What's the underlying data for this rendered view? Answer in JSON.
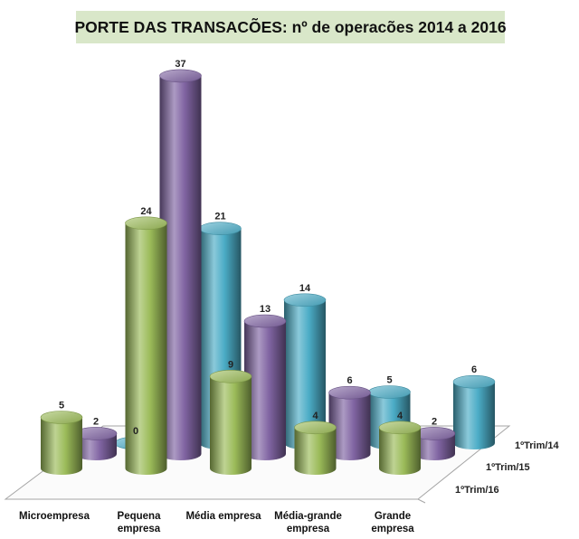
{
  "chart_data": {
    "type": "bar",
    "title": "PORTE DAS TRANSACÕES:  nº de operacões 2014 a 2016",
    "categories": [
      "Microempresa",
      "Pequena empresa",
      "Média empresa",
      "Média-grande empresa",
      "Grande empresa"
    ],
    "series": [
      {
        "name": "1ºTrim/14",
        "values": [
          0,
          21,
          14,
          5,
          6
        ]
      },
      {
        "name": "1ºTrim/15",
        "values": [
          2,
          37,
          13,
          6,
          2
        ]
      },
      {
        "name": "1ºTrim/16",
        "values": [
          5,
          24,
          9,
          4,
          4
        ]
      }
    ],
    "ylim": [
      0,
      37
    ],
    "grid": false,
    "legend": "none"
  },
  "colors": {
    "1ºTrim/14": "#4bacc6",
    "1ºTrim/15": "#8064a2",
    "1ºTrim/16": "#9bbb59"
  }
}
